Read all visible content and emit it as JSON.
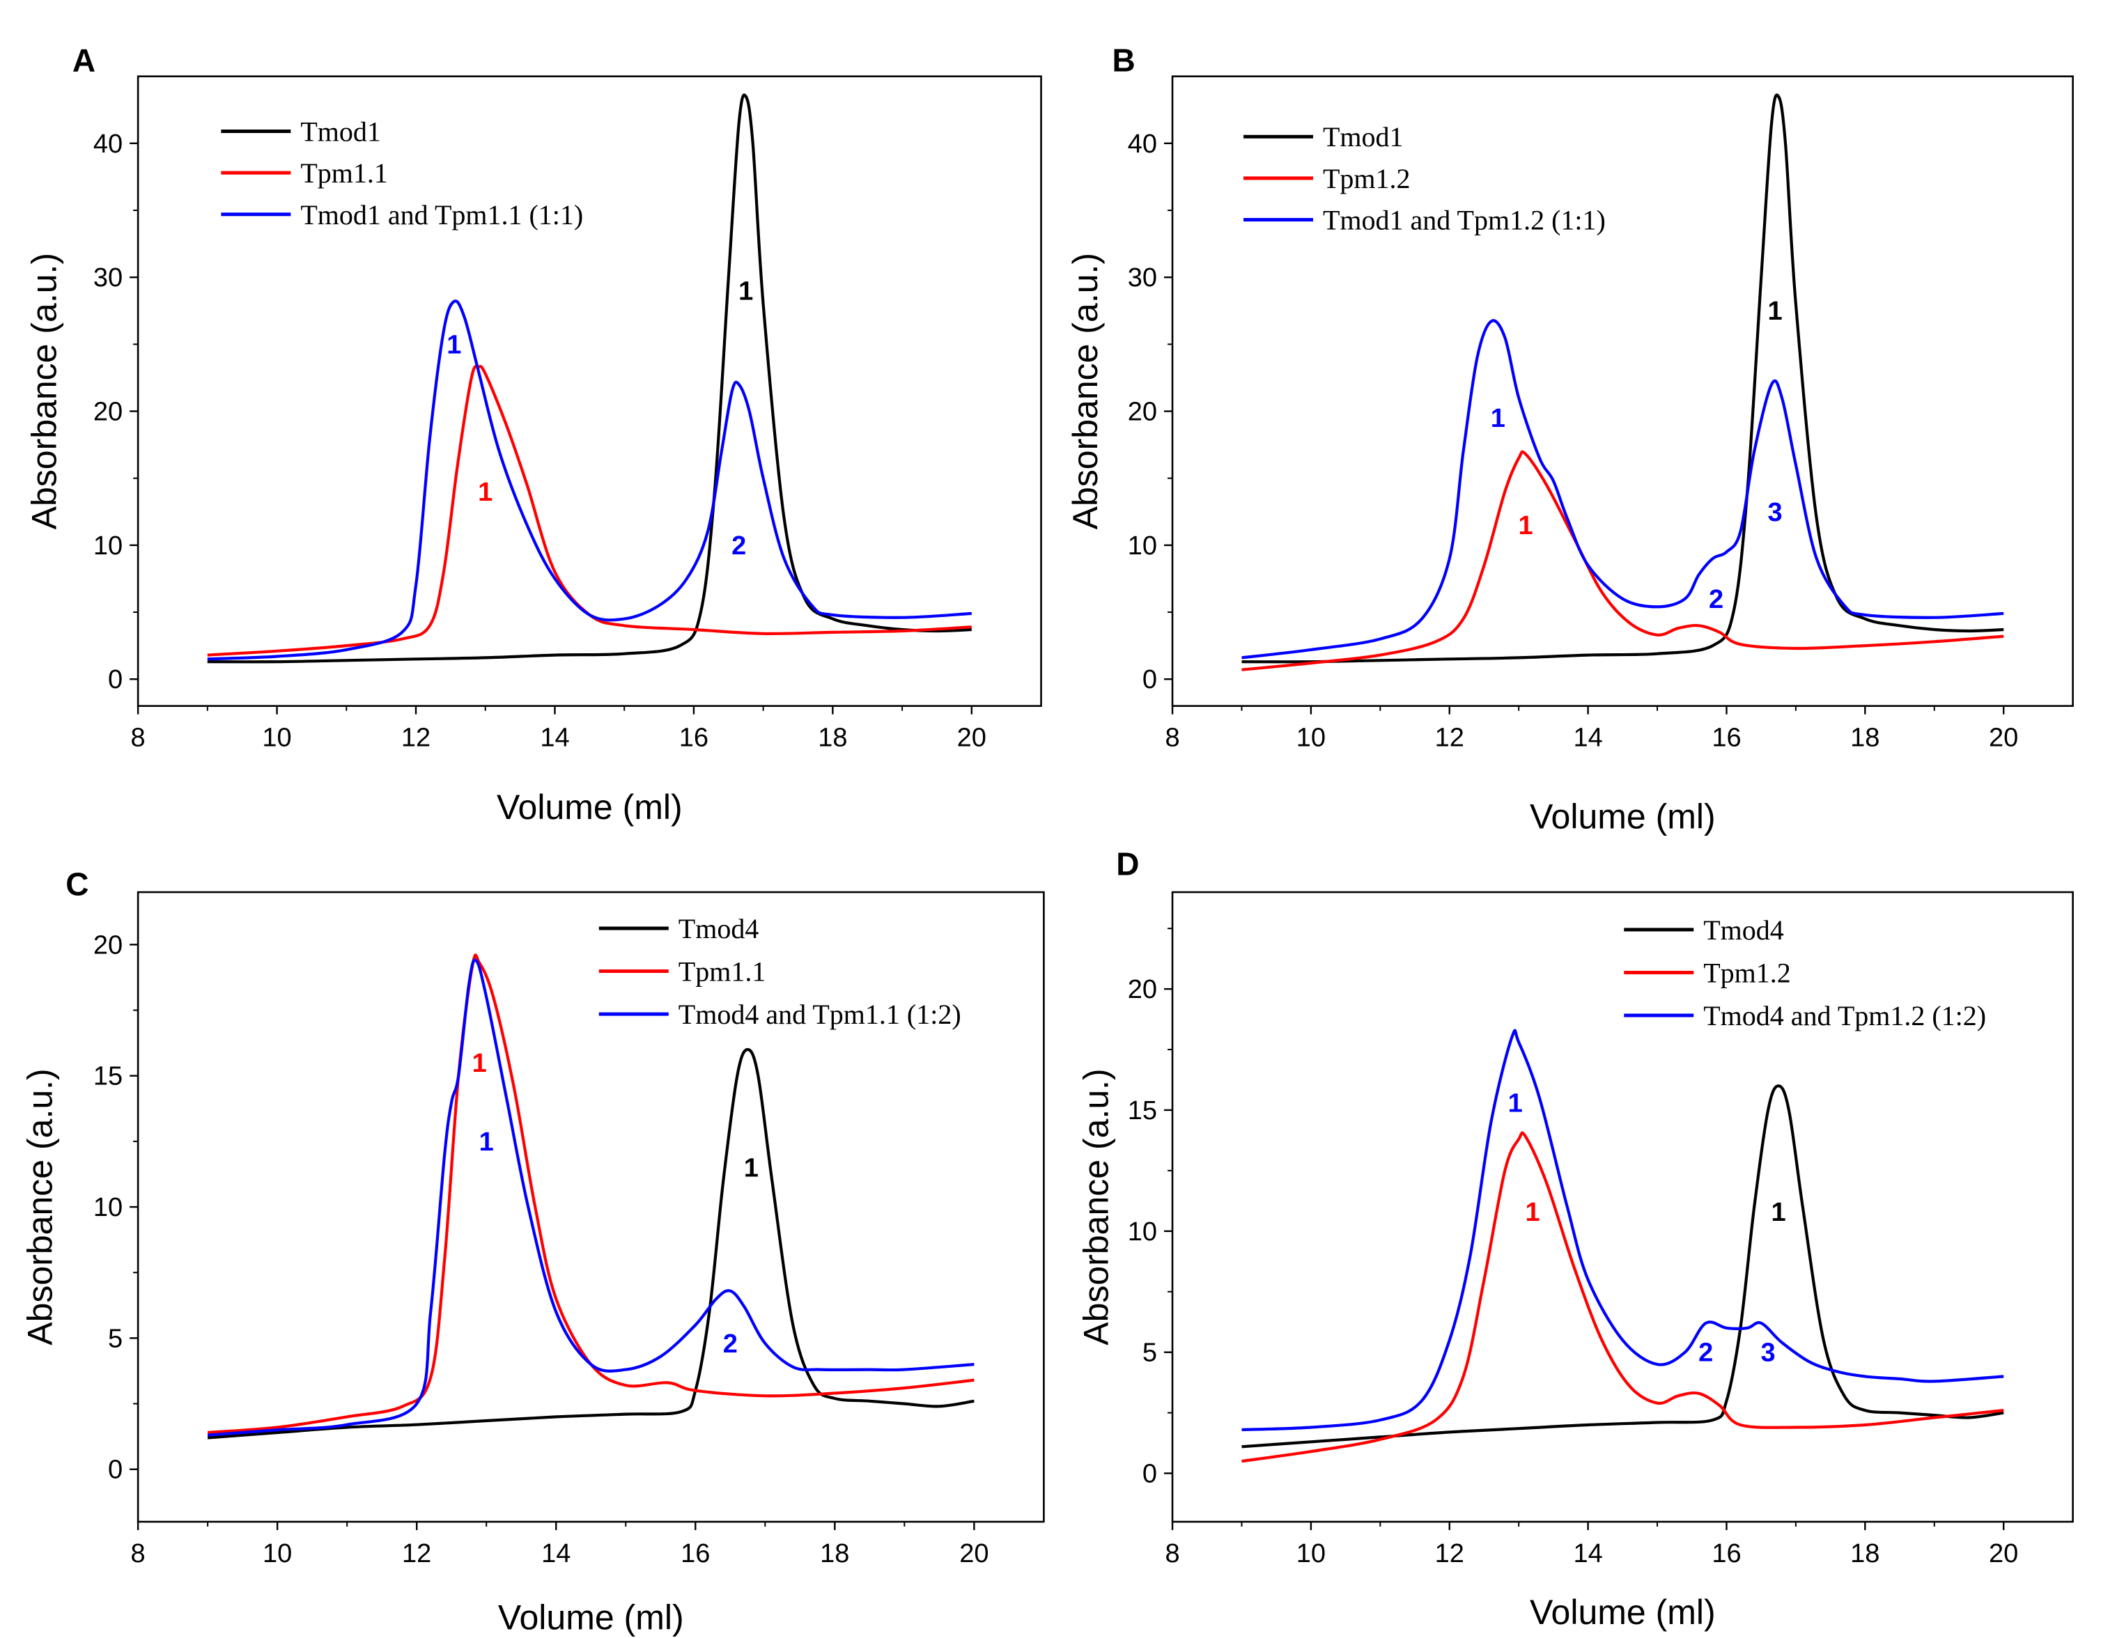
{
  "chart_data": [
    {
      "panel": "A",
      "type": "line",
      "xlabel": "Volume (ml)",
      "ylabel": "Absorbance (a.u.)",
      "xlim": [
        8,
        21
      ],
      "ylim": [
        -2,
        45
      ],
      "xticks": [
        8,
        10,
        12,
        14,
        16,
        18,
        20
      ],
      "yticks": [
        0,
        10,
        20,
        30,
        40
      ],
      "legend_position": "top-left",
      "series": [
        {
          "name": "Tmod1",
          "color": "#000000",
          "x": [
            9,
            10,
            11,
            12,
            13,
            14,
            15,
            15.8,
            16.1,
            16.3,
            16.5,
            16.65,
            16.75,
            16.85,
            17.0,
            17.3,
            17.6,
            18,
            18.5,
            19,
            19.5,
            20
          ],
          "y": [
            1.3,
            1.3,
            1.4,
            1.5,
            1.6,
            1.8,
            1.9,
            2.5,
            5,
            14,
            30,
            41.5,
            43.5,
            40,
            28,
            12,
            6,
            4.5,
            4,
            3.7,
            3.6,
            3.7
          ]
        },
        {
          "name": "Tpm1.1",
          "color": "#ff0000",
          "x": [
            9,
            10,
            11,
            11.8,
            12.2,
            12.4,
            12.6,
            12.8,
            12.9,
            13.0,
            13.3,
            13.6,
            14,
            14.5,
            15,
            16,
            17,
            18,
            19,
            20
          ],
          "y": [
            1.8,
            2.1,
            2.5,
            3,
            4,
            8,
            16,
            22.5,
            23.3,
            22.8,
            19,
            14.5,
            8,
            4.8,
            4,
            3.7,
            3.4,
            3.5,
            3.6,
            3.9
          ]
        },
        {
          "name": "Tmod1 and Tpm1.1 (1:1)",
          "color": "#0000ff",
          "x": [
            9,
            10,
            11,
            11.8,
            12.0,
            12.2,
            12.4,
            12.55,
            12.7,
            12.9,
            13.2,
            13.6,
            14,
            14.5,
            15,
            15.5,
            15.9,
            16.2,
            16.4,
            16.55,
            16.65,
            16.8,
            17.0,
            17.3,
            17.7,
            18,
            19,
            20
          ],
          "y": [
            1.5,
            1.7,
            2.2,
            3.5,
            7,
            18,
            26,
            28.2,
            27,
            23,
            17,
            11.5,
            7.5,
            4.8,
            4.5,
            5.5,
            7.5,
            11,
            17,
            21.5,
            22,
            20,
            15,
            9,
            5.5,
            4.8,
            4.6,
            4.9
          ]
        }
      ],
      "annotations": [
        {
          "text": "1",
          "x": 16.75,
          "y": 29,
          "color": "#000000"
        },
        {
          "text": "1",
          "x": 12.55,
          "y": 25,
          "color": "#0000ff"
        },
        {
          "text": "1",
          "x": 13.0,
          "y": 14,
          "color": "#ff0000"
        },
        {
          "text": "2",
          "x": 16.65,
          "y": 10,
          "color": "#0000ff"
        }
      ]
    },
    {
      "panel": "B",
      "type": "line",
      "xlabel": "Volume (ml)",
      "ylabel": "Absorbance (a.u.)",
      "xlim": [
        8,
        21
      ],
      "ylim": [
        -2,
        45
      ],
      "xticks": [
        8,
        10,
        12,
        14,
        16,
        18,
        20
      ],
      "yticks": [
        0,
        10,
        20,
        30,
        40
      ],
      "legend_position": "top-left",
      "series": [
        {
          "name": "Tmod1",
          "color": "#000000",
          "x": [
            9,
            10,
            11,
            12,
            13,
            14,
            15,
            15.8,
            16.1,
            16.3,
            16.5,
            16.65,
            16.75,
            16.85,
            17.0,
            17.3,
            17.6,
            18,
            18.5,
            19,
            19.5,
            20
          ],
          "y": [
            1.3,
            1.3,
            1.4,
            1.5,
            1.6,
            1.8,
            1.9,
            2.5,
            5,
            14,
            30,
            41.5,
            43.5,
            40,
            28,
            12,
            6,
            4.5,
            4,
            3.7,
            3.6,
            3.7
          ]
        },
        {
          "name": "Tpm1.2",
          "color": "#ff0000",
          "x": [
            9,
            10,
            11,
            11.8,
            12.2,
            12.5,
            12.8,
            13.0,
            13.1,
            13.4,
            13.8,
            14.2,
            14.6,
            15,
            15.3,
            15.6,
            15.9,
            16.2,
            17,
            18,
            19,
            20
          ],
          "y": [
            0.7,
            1.2,
            1.8,
            2.8,
            4.5,
            8.5,
            14,
            16.5,
            16.8,
            14.5,
            10.5,
            6.5,
            4.2,
            3.3,
            3.8,
            4,
            3.5,
            2.6,
            2.3,
            2.5,
            2.8,
            3.2
          ]
        },
        {
          "name": "Tmod1 and Tpm1.2 (1:1)",
          "color": "#0000ff",
          "x": [
            9,
            10,
            11,
            11.6,
            12.0,
            12.2,
            12.4,
            12.6,
            12.8,
            13.0,
            13.3,
            13.5,
            13.7,
            14.0,
            14.5,
            15,
            15.4,
            15.6,
            15.8,
            16.0,
            16.2,
            16.4,
            16.65,
            16.8,
            17.0,
            17.3,
            17.7,
            18,
            19,
            20
          ],
          "y": [
            1.6,
            2.2,
            3,
            4.5,
            9,
            17,
            24,
            26.7,
            25.5,
            21,
            16.5,
            14.8,
            12,
            8.5,
            6,
            5.4,
            6,
            7.8,
            9,
            9.5,
            11,
            17,
            22,
            21,
            16,
            9,
            5.5,
            4.8,
            4.6,
            4.9
          ]
        }
      ],
      "annotations": [
        {
          "text": "1",
          "x": 16.7,
          "y": 27.5,
          "color": "#000000"
        },
        {
          "text": "1",
          "x": 12.7,
          "y": 19.5,
          "color": "#0000ff"
        },
        {
          "text": "1",
          "x": 13.1,
          "y": 11.5,
          "color": "#ff0000"
        },
        {
          "text": "2",
          "x": 15.85,
          "y": 6.0,
          "color": "#0000ff"
        },
        {
          "text": "3",
          "x": 16.7,
          "y": 12.5,
          "color": "#0000ff"
        }
      ]
    },
    {
      "panel": "C",
      "type": "line",
      "xlabel": "Volume (ml)",
      "ylabel": "Absorbance (a.u.)",
      "xlim": [
        8,
        21
      ],
      "ylim": [
        -2,
        22
      ],
      "xticks": [
        8,
        10,
        12,
        14,
        16,
        18,
        20
      ],
      "yticks": [
        0,
        5,
        10,
        15,
        20
      ],
      "legend_position": "top-right",
      "series": [
        {
          "name": "Tmod4",
          "color": "#000000",
          "x": [
            9,
            10,
            11,
            12,
            13,
            14,
            15,
            15.8,
            16.0,
            16.2,
            16.4,
            16.6,
            16.75,
            16.9,
            17.1,
            17.4,
            17.7,
            18,
            18.5,
            19,
            19.5,
            20
          ],
          "y": [
            1.2,
            1.4,
            1.6,
            1.7,
            1.85,
            2.0,
            2.1,
            2.2,
            3,
            6,
            11,
            15,
            16,
            15,
            11,
            5.5,
            3.2,
            2.7,
            2.6,
            2.5,
            2.4,
            2.6
          ]
        },
        {
          "name": "Tpm1.1",
          "color": "#ff0000",
          "x": [
            9,
            10,
            11,
            11.8,
            12.2,
            12.4,
            12.6,
            12.8,
            12.9,
            13.1,
            13.4,
            13.7,
            14,
            14.5,
            15,
            15.6,
            16.0,
            17,
            18,
            19,
            20
          ],
          "y": [
            1.4,
            1.6,
            2.0,
            2.4,
            3.5,
            8,
            15,
            19.2,
            19.3,
            18,
            14.5,
            10,
            6.5,
            4,
            3.2,
            3.3,
            3.0,
            2.8,
            2.9,
            3.1,
            3.4
          ]
        },
        {
          "name": "Tmod4 and Tpm1.1 (1:2)",
          "color": "#0000ff",
          "x": [
            9,
            10,
            11,
            12,
            12.2,
            12.4,
            12.5,
            12.6,
            12.75,
            12.85,
            13.0,
            13.3,
            13.6,
            14,
            14.5,
            15,
            15.5,
            16.0,
            16.3,
            16.5,
            16.7,
            17.0,
            17.4,
            17.8,
            18.5,
            19,
            20
          ],
          "y": [
            1.3,
            1.5,
            1.7,
            2.5,
            6,
            12,
            14,
            15,
            18.5,
            19.4,
            18,
            14,
            10,
            6,
            4,
            3.8,
            4.3,
            5.5,
            6.5,
            6.8,
            6.2,
            4.8,
            3.9,
            3.8,
            3.8,
            3.8,
            4.0
          ]
        }
      ],
      "annotations": [
        {
          "text": "1",
          "x": 16.8,
          "y": 11.5,
          "color": "#000000"
        },
        {
          "text": "1",
          "x": 12.9,
          "y": 15.5,
          "color": "#ff0000"
        },
        {
          "text": "1",
          "x": 13.0,
          "y": 12.5,
          "color": "#0000ff"
        },
        {
          "text": "2",
          "x": 16.5,
          "y": 4.8,
          "color": "#0000ff"
        }
      ]
    },
    {
      "panel": "D",
      "type": "line",
      "xlabel": "Volume (ml)",
      "ylabel": "Absorbance (a.u.)",
      "xlim": [
        8,
        21
      ],
      "ylim": [
        -2,
        24
      ],
      "xticks": [
        8,
        10,
        12,
        14,
        16,
        18,
        20
      ],
      "yticks": [
        0,
        5,
        10,
        15,
        20
      ],
      "legend_position": "top-right",
      "series": [
        {
          "name": "Tmod4",
          "color": "#000000",
          "x": [
            9,
            10,
            11,
            12,
            13,
            14,
            15,
            15.8,
            16.0,
            16.2,
            16.4,
            16.6,
            16.75,
            16.9,
            17.1,
            17.4,
            17.7,
            18,
            18.5,
            19,
            19.5,
            20
          ],
          "y": [
            1.1,
            1.3,
            1.5,
            1.7,
            1.85,
            2.0,
            2.1,
            2.2,
            3,
            6,
            11,
            15,
            16,
            15,
            11,
            5.5,
            3.2,
            2.6,
            2.5,
            2.4,
            2.3,
            2.5
          ]
        },
        {
          "name": "Tpm1.2",
          "color": "#ff0000",
          "x": [
            9,
            10,
            11,
            11.8,
            12.2,
            12.5,
            12.8,
            13.0,
            13.1,
            13.4,
            13.8,
            14.2,
            14.6,
            15.0,
            15.3,
            15.6,
            15.9,
            16.2,
            17,
            18,
            19,
            20
          ],
          "y": [
            0.5,
            0.9,
            1.4,
            2.2,
            4,
            8,
            12.5,
            13.8,
            13.9,
            12,
            8.5,
            5.5,
            3.6,
            2.9,
            3.2,
            3.3,
            2.8,
            2.0,
            1.9,
            2.0,
            2.3,
            2.6
          ]
        },
        {
          "name": "Tmod4 and Tpm1.2 (1:2)",
          "color": "#0000ff",
          "x": [
            9,
            10,
            11,
            11.6,
            12.0,
            12.3,
            12.6,
            12.9,
            13.0,
            13.3,
            13.7,
            14,
            14.5,
            15,
            15.4,
            15.7,
            16.0,
            16.3,
            16.5,
            16.8,
            17.2,
            17.6,
            18,
            18.5,
            19,
            20
          ],
          "y": [
            1.8,
            1.9,
            2.2,
            3.0,
            5.5,
            9,
            14.5,
            18,
            17.8,
            15.5,
            11,
            8,
            5.5,
            4.5,
            5.0,
            6.2,
            6.0,
            6.0,
            6.2,
            5.4,
            4.6,
            4.2,
            4.0,
            3.9,
            3.8,
            4.0
          ]
        }
      ],
      "annotations": [
        {
          "text": "1",
          "x": 16.75,
          "y": 10.8,
          "color": "#000000"
        },
        {
          "text": "1",
          "x": 12.95,
          "y": 15.3,
          "color": "#0000ff"
        },
        {
          "text": "1",
          "x": 13.2,
          "y": 10.8,
          "color": "#ff0000"
        },
        {
          "text": "2",
          "x": 15.7,
          "y": 5.0,
          "color": "#0000ff"
        },
        {
          "text": "3",
          "x": 16.6,
          "y": 5.0,
          "color": "#0000ff"
        }
      ]
    }
  ]
}
